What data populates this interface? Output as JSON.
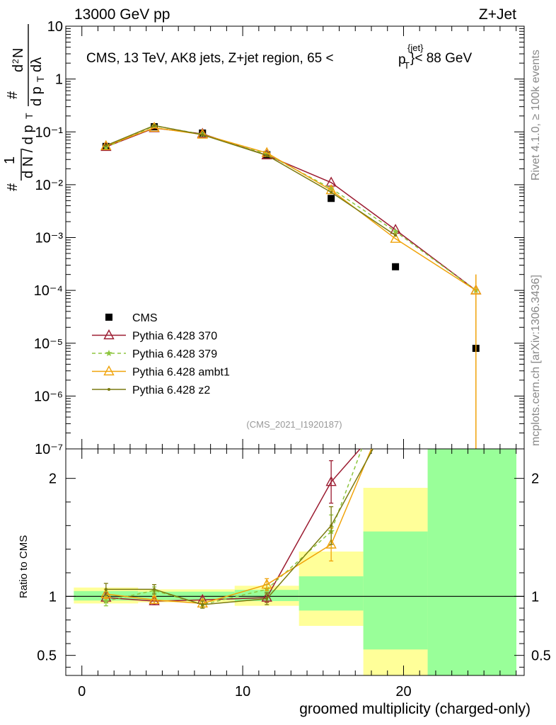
{
  "header": {
    "left": "13000 GeV pp",
    "right": "Z+Jet"
  },
  "side_labels": {
    "rivet": "Rivet 4.1.0, ≥ 100k events",
    "mcplots": "mcplots.cern.ch [arXiv:1306.3436]"
  },
  "colors": {
    "cms": "#000000",
    "p370": "#9b1b30",
    "p379": "#8dc63f",
    "ambt1": "#f0a30a",
    "z2": "#7a7a10",
    "band_inner": "#99ff99",
    "band_outer": "#ffff99"
  },
  "chart_data": [
    {
      "type": "scatter",
      "title": "CMS, 13 TeV, AK8 jets, Z+jet region, 65 < p_T^{jet} < 88 GeV",
      "title_parts": {
        "prefix": "CMS, 13 TeV, AK8 jets, Z+jet region, 65 <",
        "p": "p",
        "sub": "T",
        "sup": "{jet}",
        "suffix": "}< 88 GeV"
      },
      "analysis_id": "(CMS_2021_I1920187)",
      "ylabel": "1/dN/dp_T  d²N/dp_T dλ",
      "yscale": "log",
      "ylim": [
        1e-07,
        10
      ],
      "y_tick_labels": [
        "10⁻⁷",
        "10⁻⁶",
        "10⁻⁵",
        "10⁻⁴",
        "10⁻³",
        "10⁻²",
        "10⁻¹",
        "1",
        "10"
      ],
      "xlim": [
        -1,
        27.5
      ],
      "legend_position": "left-middle",
      "series": [
        {
          "name": "CMS",
          "key": "cms",
          "marker": "square",
          "x": [
            1.5,
            4.5,
            7.5,
            11.5,
            15.5,
            19.5,
            24.5
          ],
          "y": [
            0.053,
            0.125,
            0.095,
            0.037,
            0.0055,
            0.00028,
            8e-06
          ]
        },
        {
          "name": "Pythia 6.428 370",
          "key": "p370",
          "marker": "triangle-open",
          "line": "solid",
          "x": [
            1.5,
            4.5,
            7.5,
            11.5,
            15.5,
            19.5,
            24.5
          ],
          "y": [
            0.052,
            0.118,
            0.092,
            0.036,
            0.011,
            0.0014,
            0.0001
          ]
        },
        {
          "name": "Pythia 6.428 379",
          "key": "p379",
          "marker": "star",
          "line": "dashed",
          "x": [
            1.5,
            4.5,
            7.5,
            11.5,
            15.5,
            19.5,
            24.5
          ],
          "y": [
            0.051,
            0.13,
            0.09,
            0.038,
            0.0085,
            0.0013,
            0.0001
          ]
        },
        {
          "name": "Pythia 6.428 ambt1",
          "key": "ambt1",
          "marker": "triangle-open",
          "line": "solid",
          "x": [
            1.5,
            4.5,
            7.5,
            11.5,
            15.5,
            19.5,
            24.5
          ],
          "y": [
            0.054,
            0.12,
            0.089,
            0.04,
            0.0079,
            0.00095,
            0.0001
          ]
        },
        {
          "name": "Pythia 6.428 z2",
          "key": "z2",
          "marker": "dot",
          "line": "solid",
          "x": [
            1.5,
            4.5,
            7.5,
            11.5,
            15.5,
            19.5
          ],
          "y": [
            0.055,
            0.132,
            0.088,
            0.036,
            0.0072,
            0.0011
          ]
        }
      ]
    },
    {
      "type": "line",
      "ylabel": "Ratio to CMS",
      "xlabel": "groomed multiplicity (charged-only)",
      "xlim": [
        -1,
        27.5
      ],
      "ylim": [
        0.33,
        2.25
      ],
      "x_ticks": [
        0,
        10,
        20
      ],
      "x_tick_labels": [
        "0",
        "10",
        "20"
      ],
      "y_ticks": [
        0.5,
        1,
        2
      ],
      "y_tick_labels": [
        "0.5",
        "1",
        "2"
      ],
      "bands": [
        {
          "x0": -0.5,
          "x1": 3.5,
          "inner": [
            0.965,
            1.045
          ],
          "outer": [
            0.94,
            1.075
          ]
        },
        {
          "x0": 3.5,
          "x1": 9.5,
          "inner": [
            0.97,
            1.04
          ],
          "outer": [
            0.95,
            1.06
          ]
        },
        {
          "x0": 9.5,
          "x1": 13.5,
          "inner": [
            0.96,
            1.055
          ],
          "outer": [
            0.92,
            1.09
          ]
        },
        {
          "x0": 13.5,
          "x1": 17.5,
          "inner": [
            0.88,
            1.17
          ],
          "outer": [
            0.75,
            1.38
          ]
        },
        {
          "x0": 17.5,
          "x1": 21.5,
          "inner": [
            0.55,
            1.55
          ],
          "outer": [
            0.33,
            1.92
          ]
        },
        {
          "x0": 21.5,
          "x1": 27.5,
          "inner": [
            0.33,
            2.25
          ],
          "outer": [
            0.33,
            2.25
          ]
        }
      ],
      "series": [
        {
          "name": "Pythia 6.428 370",
          "key": "p370",
          "x": [
            1.5,
            4.5,
            7.5,
            11.5,
            15.5,
            17.3
          ],
          "y": [
            0.99,
            0.96,
            0.97,
            0.99,
            1.97,
            2.25
          ],
          "err": [
            0.04,
            0.03,
            0.03,
            0.04,
            0.18,
            0
          ]
        },
        {
          "name": "Pythia 6.428 379",
          "key": "p379",
          "x": [
            1.5,
            4.5,
            7.5,
            11.5,
            15.5,
            17.4
          ],
          "y": [
            0.96,
            1.05,
            0.93,
            1.06,
            1.55,
            2.25
          ],
          "err": [
            0.04,
            0.03,
            0.03,
            0.04,
            0.14,
            0
          ]
        },
        {
          "name": "Pythia 6.428 ambt1",
          "key": "ambt1",
          "x": [
            1.5,
            4.5,
            7.5,
            11.5,
            15.5,
            18.0
          ],
          "y": [
            1.02,
            0.97,
            0.94,
            1.1,
            1.44,
            2.25
          ],
          "err": [
            0.04,
            0.03,
            0.03,
            0.05,
            0.14,
            0
          ]
        },
        {
          "name": "Pythia 6.428 z2",
          "key": "z2",
          "x": [
            1.5,
            4.5,
            7.5,
            11.5,
            15.5,
            18.1
          ],
          "y": [
            1.06,
            1.06,
            0.93,
            0.98,
            1.6,
            2.25
          ],
          "err": [
            0.05,
            0.04,
            0.03,
            0.05,
            0.16,
            0
          ]
        }
      ]
    }
  ]
}
